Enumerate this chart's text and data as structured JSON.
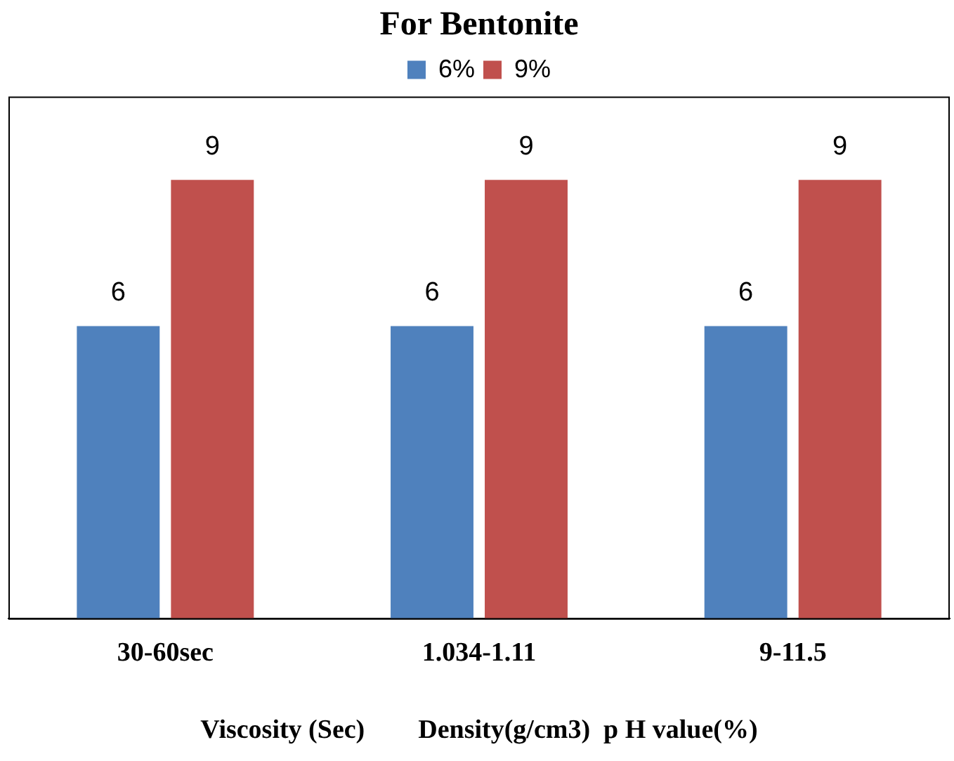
{
  "chart_data": {
    "type": "bar",
    "title": "For Bentonite",
    "categories": [
      "30-60sec",
      "1.034-1.11",
      "9-11.5"
    ],
    "xlabel": "Viscosity (Sec)        Density(g/cm3)  p H value(%)",
    "series": [
      {
        "name": "6%",
        "color": "#4f81bd",
        "values": [
          6,
          6,
          6
        ]
      },
      {
        "name": "9%",
        "color": "#c0504d",
        "values": [
          9,
          9,
          9
        ]
      }
    ],
    "data_labels": true,
    "legend": "top"
  }
}
